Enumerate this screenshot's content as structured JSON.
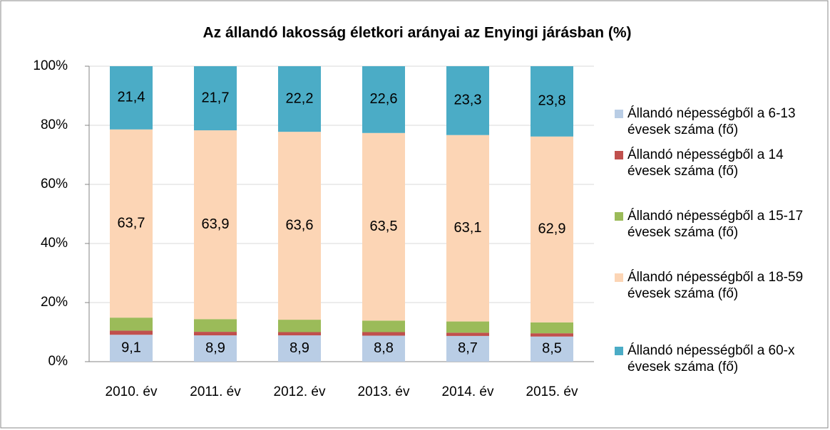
{
  "chart_data": {
    "type": "stacked-bar",
    "title": "Az állandó lakosság életkori arányai az Enyingi járásban (%)",
    "categories": [
      "2010. év",
      "2011. év",
      "2012. év",
      "2013. év",
      "2014. év",
      "2015. év"
    ],
    "series": [
      {
        "name": "Állandó népességből a 6-13 évesek száma (fő)",
        "color": "#b9cde5",
        "values": [
          9.1,
          8.9,
          8.9,
          8.8,
          8.7,
          8.5
        ],
        "value_labels": [
          "9,1",
          "8,9",
          "8,9",
          "8,8",
          "8,7",
          "8,5"
        ]
      },
      {
        "name": "Állandó népességből a 14 évesek száma (fő)",
        "color": "#c0504d",
        "values": [
          1.4,
          1.2,
          1.1,
          1.2,
          1.1,
          1.1
        ]
      },
      {
        "name": "Állandó népességből a 15-17 évesek száma (fő)",
        "color": "#9bbb59",
        "values": [
          4.4,
          4.3,
          4.2,
          3.9,
          3.8,
          3.7
        ]
      },
      {
        "name": "Állandó népességből a 18-59 évesek száma (fő)",
        "color": "#fcd5b5",
        "values": [
          63.7,
          63.9,
          63.6,
          63.5,
          63.1,
          62.9
        ],
        "value_labels": [
          "63,7",
          "63,9",
          "63,6",
          "63,5",
          "63,1",
          "62,9"
        ]
      },
      {
        "name": "Állandó népességből a 60-x évesek száma (fő)",
        "color": "#4bacc6",
        "values": [
          21.4,
          21.7,
          22.2,
          22.6,
          23.3,
          23.8
        ],
        "value_labels": [
          "21,4",
          "21,7",
          "22,2",
          "22,6",
          "23,3",
          "23,8"
        ]
      }
    ],
    "ylim": [
      0,
      100
    ],
    "yticks": [
      {
        "value": 0,
        "label": "0%"
      },
      {
        "value": 20,
        "label": "20%"
      },
      {
        "value": 40,
        "label": "40%"
      },
      {
        "value": 60,
        "label": "60%"
      },
      {
        "value": 80,
        "label": "80%"
      },
      {
        "value": 100,
        "label": "100%"
      }
    ],
    "grid": true,
    "legend": "right"
  }
}
